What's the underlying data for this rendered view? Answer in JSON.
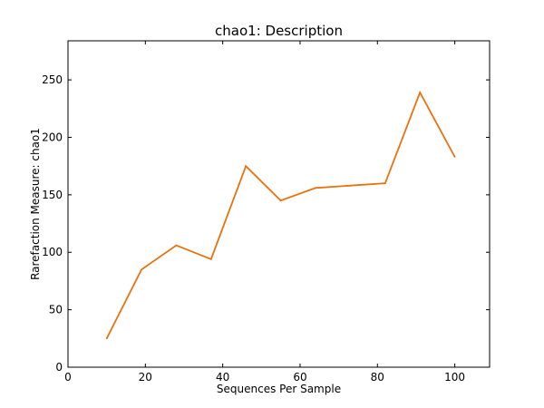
{
  "chart_data": {
    "type": "line",
    "title": "chao1: Description",
    "xlabel": "Sequences Per Sample",
    "ylabel": "Rarefaction Measure: chao1",
    "xlim": [
      0,
      109
    ],
    "ylim": [
      0,
      284
    ],
    "xticks": [
      0,
      20,
      40,
      60,
      80,
      100
    ],
    "yticks": [
      0,
      50,
      100,
      150,
      200,
      250
    ],
    "grid": false,
    "series": [
      {
        "color": "#e8720c",
        "x": [
          10,
          19,
          28,
          37,
          46,
          55,
          64,
          73,
          82,
          91,
          100
        ],
        "y": [
          25,
          85,
          106,
          94,
          175,
          145,
          156,
          158,
          160,
          239,
          183
        ]
      }
    ]
  }
}
